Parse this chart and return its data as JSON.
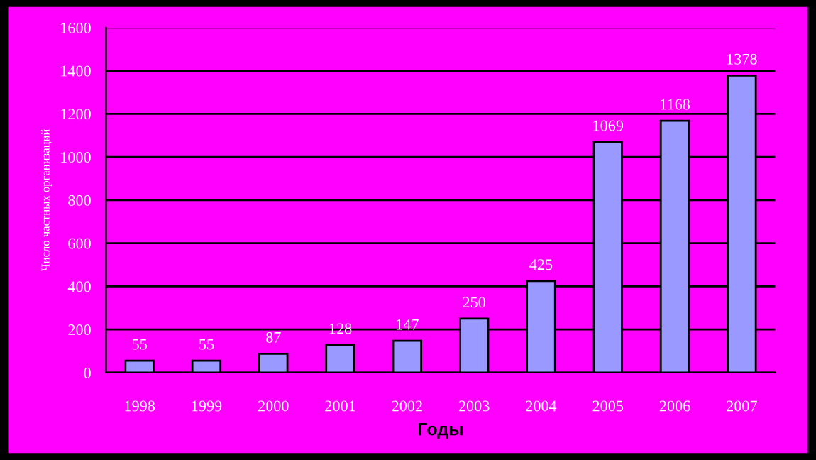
{
  "chart_data": {
    "type": "bar",
    "xlabel": "Годы",
    "ylabel": "Число частных организаций",
    "categories": [
      "1998",
      "1999",
      "2000",
      "2001",
      "2002",
      "2003",
      "2004",
      "2005",
      "2006",
      "2007"
    ],
    "values": [
      55,
      55,
      87,
      128,
      147,
      250,
      425,
      1069,
      1168,
      1378
    ],
    "color": "#9999ff",
    "data_labels": true,
    "grid": "y",
    "ylim": [
      0,
      1600
    ],
    "yticks": [
      0,
      200,
      400,
      600,
      800,
      1000,
      1200,
      1400,
      1600
    ]
  }
}
